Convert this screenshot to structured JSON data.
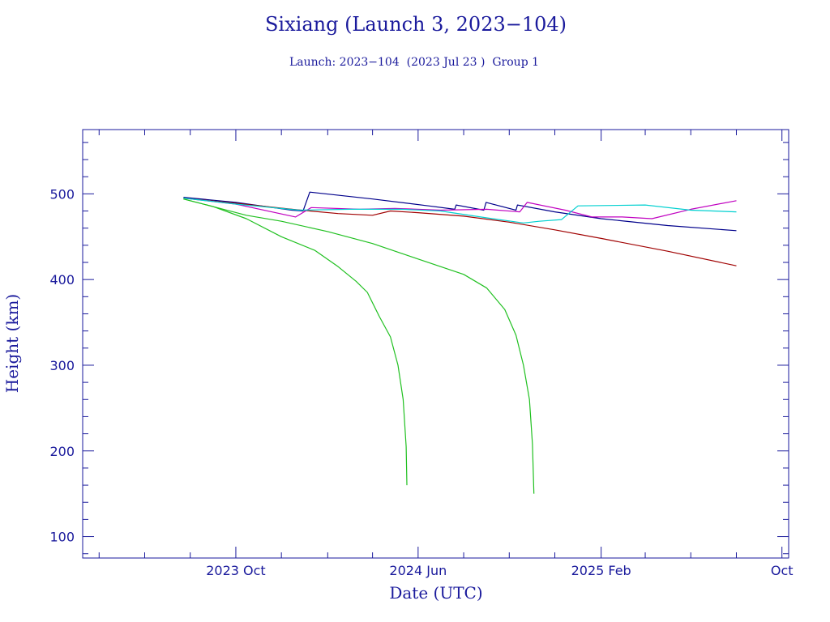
{
  "chart_data": {
    "type": "line",
    "title": "Sixiang (Launch 3, 2023−104)",
    "subtitle": "Launch: 2023−104  (2023 Jul 23 )  Group 1",
    "xlabel": "Date (UTC)",
    "ylabel": "Height (km)",
    "xlim": [
      "2023-03-10",
      "2025-10-10"
    ],
    "ylim": [
      75,
      575
    ],
    "x_ticks": [
      {
        "date": "2023-10-01",
        "label": "2023 Oct"
      },
      {
        "date": "2024-06-01",
        "label": "2024 Jun"
      },
      {
        "date": "2025-02-01",
        "label": "2025 Feb"
      },
      {
        "date": "2025-10-01",
        "label": "Oct"
      }
    ],
    "y_ticks": [
      100,
      200,
      300,
      400,
      500
    ],
    "grid": false,
    "series": [
      {
        "color": "#00008b",
        "points": [
          [
            "2023-07-23",
            496
          ],
          [
            "2023-10-01",
            490
          ],
          [
            "2023-12-15",
            481
          ],
          [
            "2023-12-30",
            480
          ],
          [
            "2024-01-08",
            502
          ],
          [
            "2024-04-01",
            494
          ],
          [
            "2024-06-15",
            486
          ],
          [
            "2024-07-20",
            482
          ],
          [
            "2024-07-22",
            487
          ],
          [
            "2024-08-28",
            481
          ],
          [
            "2024-08-31",
            490
          ],
          [
            "2024-10-10",
            481
          ],
          [
            "2024-10-12",
            487
          ],
          [
            "2024-12-01",
            479
          ],
          [
            "2025-02-01",
            471
          ],
          [
            "2025-05-01",
            463
          ],
          [
            "2025-08-01",
            457
          ]
        ]
      },
      {
        "color": "#a00000",
        "points": [
          [
            "2023-07-23",
            495
          ],
          [
            "2023-10-01",
            489
          ],
          [
            "2023-12-15",
            482
          ],
          [
            "2024-02-15",
            477
          ],
          [
            "2024-04-01",
            475
          ],
          [
            "2024-04-25",
            480
          ],
          [
            "2024-06-01",
            478
          ],
          [
            "2024-08-01",
            474
          ],
          [
            "2024-10-01",
            467
          ],
          [
            "2024-12-01",
            458
          ],
          [
            "2025-02-01",
            448
          ],
          [
            "2025-05-01",
            433
          ],
          [
            "2025-08-01",
            416
          ]
        ]
      },
      {
        "color": "#c000c0",
        "points": [
          [
            "2023-07-23",
            495
          ],
          [
            "2023-10-01",
            488
          ],
          [
            "2023-12-20",
            473
          ],
          [
            "2024-01-10",
            484
          ],
          [
            "2024-03-15",
            482
          ],
          [
            "2024-05-01",
            483
          ],
          [
            "2024-07-01",
            481
          ],
          [
            "2024-09-01",
            482
          ],
          [
            "2024-10-15",
            479
          ],
          [
            "2024-10-25",
            490
          ],
          [
            "2024-12-15",
            481
          ],
          [
            "2025-01-20",
            473
          ],
          [
            "2025-03-01",
            473
          ],
          [
            "2025-04-10",
            471
          ],
          [
            "2025-06-01",
            482
          ],
          [
            "2025-08-01",
            492
          ]
        ]
      },
      {
        "color": "#00d0d0",
        "points": [
          [
            "2023-07-23",
            495
          ],
          [
            "2023-10-01",
            488
          ],
          [
            "2023-12-25",
            481
          ],
          [
            "2024-03-01",
            482
          ],
          [
            "2024-05-10",
            482
          ],
          [
            "2024-07-01",
            480
          ],
          [
            "2024-09-01",
            472
          ],
          [
            "2024-10-20",
            466
          ],
          [
            "2024-11-10",
            468
          ],
          [
            "2024-12-10",
            470
          ],
          [
            "2025-01-01",
            486
          ],
          [
            "2025-04-01",
            487
          ],
          [
            "2025-06-01",
            481
          ],
          [
            "2025-08-01",
            479
          ]
        ]
      },
      {
        "color": "#20c020",
        "points": [
          [
            "2023-07-23",
            494
          ],
          [
            "2023-09-01",
            485
          ],
          [
            "2023-10-15",
            471
          ],
          [
            "2023-12-01",
            450
          ],
          [
            "2024-01-15",
            434
          ],
          [
            "2024-02-15",
            415
          ],
          [
            "2024-03-10",
            398
          ],
          [
            "2024-03-25",
            385
          ],
          [
            "2024-04-10",
            357
          ],
          [
            "2024-04-25",
            333
          ],
          [
            "2024-05-05",
            300
          ],
          [
            "2024-05-12",
            260
          ],
          [
            "2024-05-16",
            205
          ],
          [
            "2024-05-17",
            160
          ]
        ]
      },
      {
        "color": "#20c020",
        "points": [
          [
            "2023-07-23",
            494
          ],
          [
            "2023-09-01",
            485
          ],
          [
            "2023-10-15",
            475
          ],
          [
            "2023-12-01",
            468
          ],
          [
            "2024-02-01",
            456
          ],
          [
            "2024-04-01",
            442
          ],
          [
            "2024-06-01",
            424
          ],
          [
            "2024-08-01",
            406
          ],
          [
            "2024-09-01",
            390
          ],
          [
            "2024-09-25",
            365
          ],
          [
            "2024-10-10",
            335
          ],
          [
            "2024-10-20",
            300
          ],
          [
            "2024-10-28",
            260
          ],
          [
            "2024-11-01",
            208
          ],
          [
            "2024-11-03",
            150
          ]
        ]
      }
    ]
  }
}
